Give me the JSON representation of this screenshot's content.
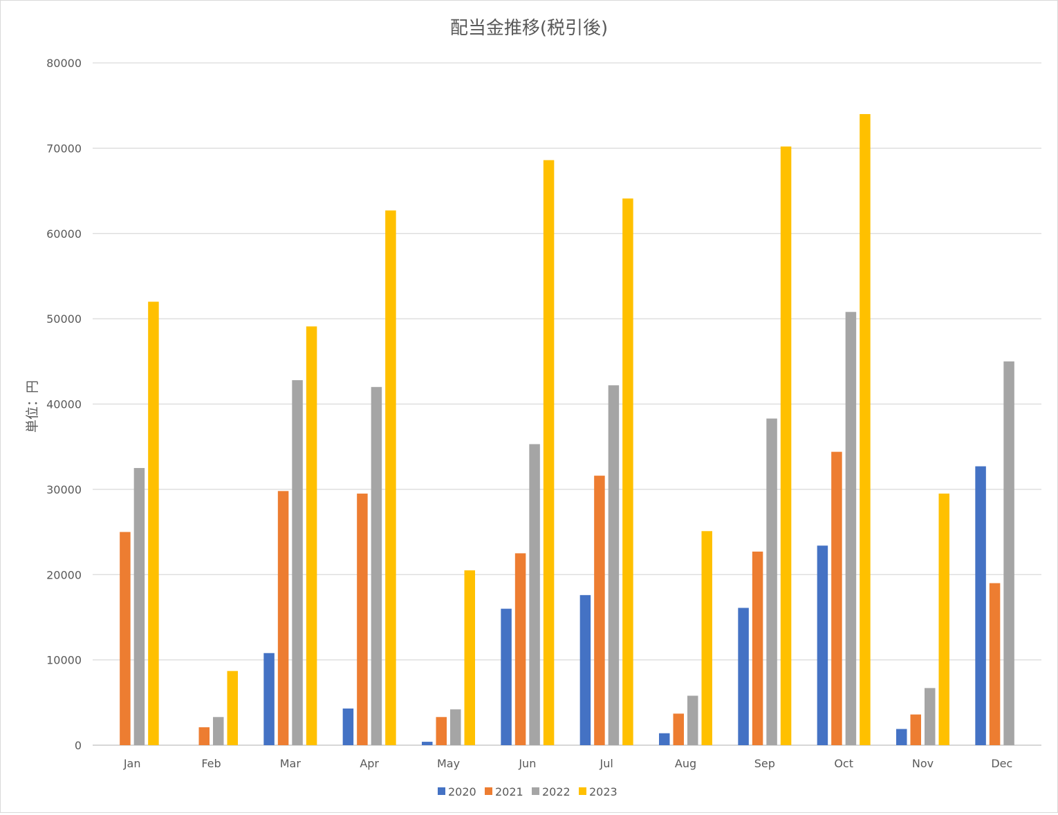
{
  "chart_data": {
    "type": "bar",
    "title": "配当金推移(税引後)",
    "ylabel": "単位：円",
    "xlabel": "",
    "ylim": [
      0,
      80000
    ],
    "y_ticks": [
      0,
      10000,
      20000,
      30000,
      40000,
      50000,
      60000,
      70000,
      80000
    ],
    "grid": true,
    "legend_position": "bottom",
    "categories": [
      "Jan",
      "Feb",
      "Mar",
      "Apr",
      "May",
      "Jun",
      "Jul",
      "Aug",
      "Sep",
      "Oct",
      "Nov",
      "Dec"
    ],
    "series": [
      {
        "name": "2020",
        "color": "#4472c4",
        "values": [
          0,
          0,
          10800,
          4300,
          400,
          16000,
          17600,
          1400,
          16100,
          23400,
          1900,
          32700
        ]
      },
      {
        "name": "2021",
        "color": "#ed7d31",
        "values": [
          25000,
          2100,
          29800,
          29500,
          3300,
          22500,
          31600,
          3700,
          22700,
          34400,
          3600,
          19000
        ]
      },
      {
        "name": "2022",
        "color": "#a5a5a5",
        "values": [
          32500,
          3300,
          42800,
          42000,
          4200,
          35300,
          42200,
          5800,
          38300,
          50800,
          6700,
          45000
        ]
      },
      {
        "name": "2023",
        "color": "#ffc000",
        "values": [
          52000,
          8700,
          49100,
          62700,
          20500,
          68600,
          64100,
          25100,
          70200,
          74000,
          29500,
          0
        ]
      }
    ]
  }
}
